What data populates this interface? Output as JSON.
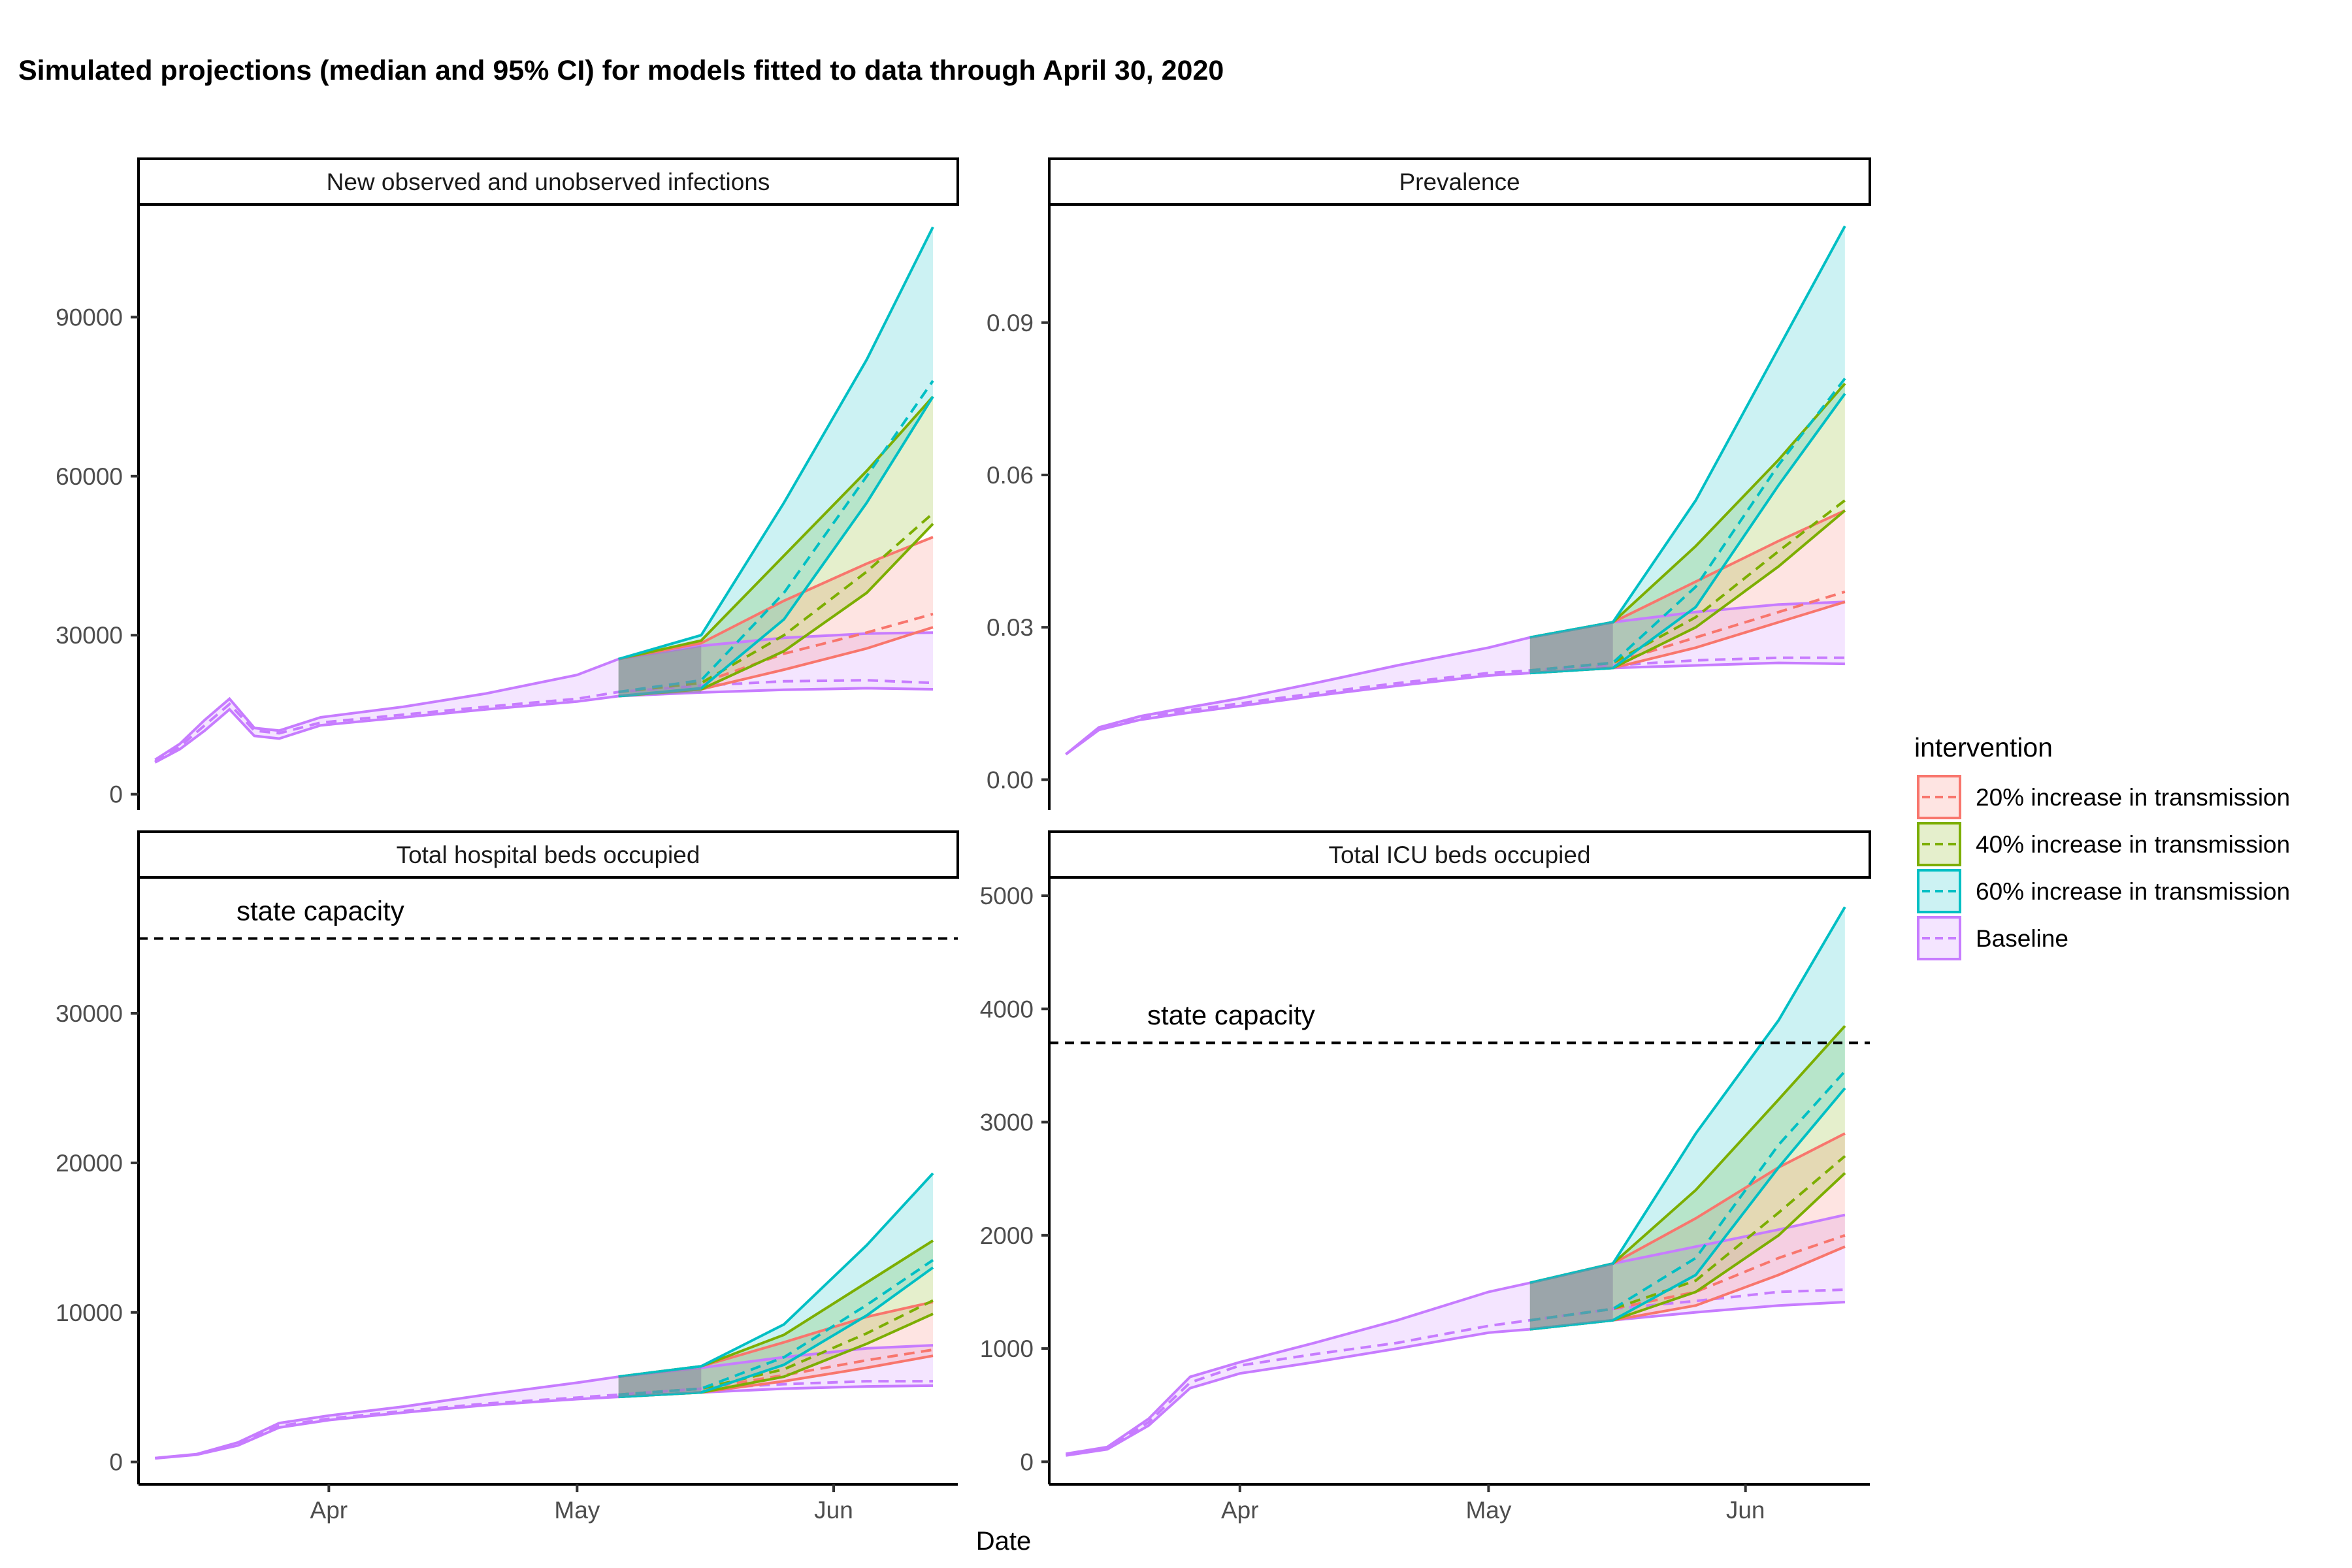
{
  "title": "Simulated projections (median and 95% CI) for models fitted to data through April 30, 2020",
  "xlabel": "Date",
  "legend": {
    "title": "intervention",
    "entries": [
      {
        "label": "20% increase in transmission",
        "color": "#F8766D"
      },
      {
        "label": "40% increase in transmission",
        "color": "#7CAE00"
      },
      {
        "label": "60% increase in transmission",
        "color": "#00BFC4"
      },
      {
        "label": "Baseline",
        "color": "#C77CFF"
      }
    ]
  },
  "chart_data": [
    {
      "type": "area",
      "title": "New observed and unobserved infections",
      "x_ticks": [
        "Apr",
        "May",
        "Jun"
      ],
      "ylim": [
        -3000,
        111000
      ],
      "y_ticks": [
        "0",
        "30000",
        "60000",
        "90000"
      ],
      "y_tick_values": [
        0,
        30000,
        60000,
        90000
      ],
      "series": [
        {
          "name": "Baseline",
          "x": [
            "2020-03-11",
            "2020-03-14",
            "2020-03-17",
            "2020-03-20",
            "2020-03-23",
            "2020-03-26",
            "2020-03-31",
            "2020-04-10",
            "2020-04-20",
            "2020-05-01",
            "2020-05-06",
            "2020-05-16",
            "2020-05-26",
            "2020-06-05",
            "2020-06-13"
          ],
          "median": [
            6200,
            9000,
            13000,
            17000,
            12000,
            11500,
            13500,
            15000,
            16500,
            18000,
            19300,
            20500,
            21300,
            21500,
            21000
          ],
          "lower": [
            6000,
            8500,
            12000,
            16000,
            11000,
            10500,
            13000,
            14500,
            16000,
            17500,
            18500,
            19200,
            19700,
            20000,
            19800
          ],
          "upper": [
            6500,
            9500,
            14000,
            18000,
            12500,
            12000,
            14500,
            16500,
            19000,
            22500,
            25500,
            28000,
            29500,
            30300,
            30500
          ]
        },
        {
          "name": "20% increase in transmission",
          "x": [
            "2020-05-06",
            "2020-05-16",
            "2020-05-26",
            "2020-06-05",
            "2020-06-13"
          ],
          "median": [
            19300,
            21000,
            26500,
            30500,
            34000
          ],
          "lower": [
            18500,
            19800,
            23500,
            27500,
            31500
          ],
          "upper": [
            25500,
            28500,
            36500,
            43500,
            48500
          ]
        },
        {
          "name": "40% increase in transmission",
          "x": [
            "2020-05-06",
            "2020-05-16",
            "2020-05-26",
            "2020-06-05",
            "2020-06-13"
          ],
          "median": [
            19300,
            21000,
            30000,
            42000,
            53000
          ],
          "lower": [
            18500,
            19800,
            27000,
            38000,
            51000
          ],
          "upper": [
            25500,
            29000,
            45000,
            61000,
            75000
          ]
        },
        {
          "name": "60% increase in transmission",
          "x": [
            "2020-05-06",
            "2020-05-16",
            "2020-05-26",
            "2020-06-05",
            "2020-06-13"
          ],
          "median": [
            19300,
            21500,
            38000,
            60000,
            78000
          ],
          "lower": [
            18500,
            20000,
            33000,
            55000,
            75000
          ],
          "upper": [
            25500,
            30000,
            55000,
            82000,
            107000
          ]
        }
      ]
    },
    {
      "type": "area",
      "title": "Prevalence",
      "x_ticks": [
        "Apr",
        "May",
        "Jun"
      ],
      "ylim": [
        -0.006,
        0.113
      ],
      "y_ticks": [
        "0.00",
        "0.03",
        "0.06",
        "0.09"
      ],
      "y_tick_values": [
        0,
        0.03,
        0.06,
        0.09
      ],
      "series": [
        {
          "name": "Baseline",
          "x": [
            "2020-03-11",
            "2020-03-15",
            "2020-03-20",
            "2020-03-25",
            "2020-04-01",
            "2020-04-10",
            "2020-04-20",
            "2020-05-01",
            "2020-05-06",
            "2020-05-16",
            "2020-05-26",
            "2020-06-05",
            "2020-06-13"
          ],
          "median": [
            0.005,
            0.01,
            0.012,
            0.0135,
            0.015,
            0.017,
            0.019,
            0.021,
            0.0215,
            0.0225,
            0.0235,
            0.024,
            0.024
          ],
          "lower": [
            0.005,
            0.0098,
            0.0118,
            0.013,
            0.0145,
            0.0165,
            0.0185,
            0.0205,
            0.021,
            0.022,
            0.0225,
            0.023,
            0.0228
          ],
          "upper": [
            0.005,
            0.0103,
            0.0125,
            0.014,
            0.016,
            0.019,
            0.0225,
            0.026,
            0.028,
            0.031,
            0.033,
            0.0345,
            0.035
          ]
        },
        {
          "name": "20% increase in transmission",
          "x": [
            "2020-05-06",
            "2020-05-16",
            "2020-05-26",
            "2020-06-05",
            "2020-06-13"
          ],
          "median": [
            0.0215,
            0.023,
            0.028,
            0.033,
            0.037
          ],
          "lower": [
            0.021,
            0.022,
            0.026,
            0.031,
            0.035
          ],
          "upper": [
            0.028,
            0.031,
            0.039,
            0.047,
            0.053
          ]
        },
        {
          "name": "40% increase in transmission",
          "x": [
            "2020-05-06",
            "2020-05-16",
            "2020-05-26",
            "2020-06-05",
            "2020-06-13"
          ],
          "median": [
            0.0215,
            0.023,
            0.032,
            0.045,
            0.055
          ],
          "lower": [
            0.021,
            0.022,
            0.03,
            0.042,
            0.053
          ],
          "upper": [
            0.028,
            0.031,
            0.046,
            0.063,
            0.078
          ]
        },
        {
          "name": "60% increase in transmission",
          "x": [
            "2020-05-06",
            "2020-05-16",
            "2020-05-26",
            "2020-06-05",
            "2020-06-13"
          ],
          "median": [
            0.0215,
            0.023,
            0.038,
            0.062,
            0.079
          ],
          "lower": [
            0.021,
            0.022,
            0.034,
            0.058,
            0.076
          ],
          "upper": [
            0.028,
            0.031,
            0.055,
            0.085,
            0.109
          ]
        }
      ]
    },
    {
      "type": "area",
      "title": "Total hospital beds occupied",
      "x_ticks": [
        "Apr",
        "May",
        "Jun"
      ],
      "ylim": [
        -1500,
        39000
      ],
      "y_ticks": [
        "0",
        "10000",
        "20000",
        "30000"
      ],
      "y_tick_values": [
        0,
        10000,
        20000,
        30000
      ],
      "reference_line": {
        "value": 35000,
        "label": "state capacity"
      },
      "series": [
        {
          "name": "Baseline",
          "x": [
            "2020-03-11",
            "2020-03-16",
            "2020-03-21",
            "2020-03-26",
            "2020-04-01",
            "2020-04-10",
            "2020-04-20",
            "2020-05-01",
            "2020-05-06",
            "2020-05-16",
            "2020-05-26",
            "2020-06-05",
            "2020-06-13"
          ],
          "median": [
            250,
            500,
            1200,
            2400,
            2900,
            3400,
            3900,
            4300,
            4500,
            4900,
            5200,
            5400,
            5400
          ],
          "lower": [
            240,
            480,
            1100,
            2300,
            2800,
            3300,
            3800,
            4200,
            4350,
            4650,
            4900,
            5050,
            5100
          ],
          "upper": [
            260,
            520,
            1300,
            2600,
            3100,
            3700,
            4500,
            5300,
            5700,
            6300,
            7000,
            7600,
            7800
          ]
        },
        {
          "name": "20% increase in transmission",
          "x": [
            "2020-05-06",
            "2020-05-16",
            "2020-05-26",
            "2020-06-05",
            "2020-06-13"
          ],
          "median": [
            4500,
            4900,
            5800,
            6800,
            7500
          ],
          "lower": [
            4350,
            4650,
            5400,
            6300,
            7100
          ],
          "upper": [
            5700,
            6400,
            8000,
            9700,
            10700
          ]
        },
        {
          "name": "40% increase in transmission",
          "x": [
            "2020-05-06",
            "2020-05-16",
            "2020-05-26",
            "2020-06-05",
            "2020-06-13"
          ],
          "median": [
            4500,
            4900,
            6200,
            8600,
            10800
          ],
          "lower": [
            4350,
            4650,
            5700,
            7900,
            9900
          ],
          "upper": [
            5700,
            6400,
            8500,
            12000,
            14800
          ]
        },
        {
          "name": "60% increase in transmission",
          "x": [
            "2020-05-06",
            "2020-05-16",
            "2020-05-26",
            "2020-06-05",
            "2020-06-13"
          ],
          "median": [
            4500,
            4900,
            7000,
            10500,
            13500
          ],
          "lower": [
            4350,
            4650,
            6500,
            9800,
            13000
          ],
          "upper": [
            5700,
            6400,
            9200,
            14500,
            19300
          ]
        }
      ]
    },
    {
      "type": "area",
      "title": "Total ICU beds occupied",
      "x_ticks": [
        "Apr",
        "May",
        "Jun"
      ],
      "ylim": [
        -200,
        5150
      ],
      "y_ticks": [
        "0",
        "1000",
        "2000",
        "3000",
        "4000",
        "5000"
      ],
      "y_tick_values": [
        0,
        1000,
        2000,
        3000,
        4000,
        5000
      ],
      "reference_line": {
        "value": 3700,
        "label": "state capacity"
      },
      "series": [
        {
          "name": "Baseline",
          "x": [
            "2020-03-11",
            "2020-03-16",
            "2020-03-21",
            "2020-03-26",
            "2020-04-01",
            "2020-04-10",
            "2020-04-20",
            "2020-05-01",
            "2020-05-06",
            "2020-05-16",
            "2020-05-26",
            "2020-06-05",
            "2020-06-13"
          ],
          "median": [
            60,
            120,
            350,
            700,
            850,
            950,
            1050,
            1200,
            1250,
            1350,
            1420,
            1500,
            1520
          ],
          "lower": [
            55,
            110,
            320,
            650,
            780,
            880,
            1000,
            1140,
            1170,
            1250,
            1320,
            1380,
            1410
          ],
          "upper": [
            70,
            130,
            380,
            750,
            880,
            1050,
            1250,
            1500,
            1580,
            1750,
            1900,
            2050,
            2180
          ]
        },
        {
          "name": "20% increase in transmission",
          "x": [
            "2020-05-06",
            "2020-05-16",
            "2020-05-26",
            "2020-06-05",
            "2020-06-13"
          ],
          "median": [
            1250,
            1350,
            1500,
            1800,
            2000
          ],
          "lower": [
            1170,
            1250,
            1380,
            1650,
            1900
          ],
          "upper": [
            1580,
            1750,
            2150,
            2600,
            2900
          ]
        },
        {
          "name": "40% increase in transmission",
          "x": [
            "2020-05-06",
            "2020-05-16",
            "2020-05-26",
            "2020-06-05",
            "2020-06-13"
          ],
          "median": [
            1250,
            1350,
            1600,
            2200,
            2700
          ],
          "lower": [
            1170,
            1250,
            1500,
            2000,
            2550
          ],
          "upper": [
            1580,
            1750,
            2400,
            3200,
            3850
          ]
        },
        {
          "name": "60% increase in transmission",
          "x": [
            "2020-05-06",
            "2020-05-16",
            "2020-05-26",
            "2020-06-05",
            "2020-06-13"
          ],
          "median": [
            1250,
            1350,
            1800,
            2800,
            3450
          ],
          "lower": [
            1170,
            1250,
            1650,
            2600,
            3300
          ],
          "upper": [
            1580,
            1750,
            2900,
            3900,
            4900
          ]
        }
      ]
    }
  ]
}
